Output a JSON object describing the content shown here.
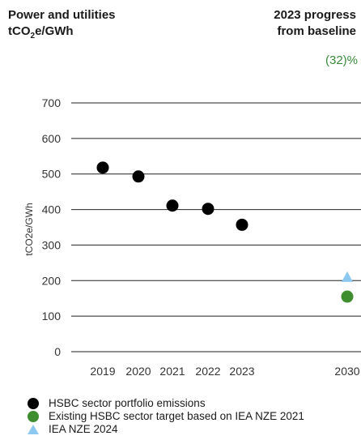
{
  "header": {
    "title_line1": "Power and utilities",
    "title_unit_main": "tCO",
    "title_unit_sub": "2",
    "title_unit_tail": "e/GWh",
    "progress_line1": "2023 progress",
    "progress_line2": "from baseline",
    "progress_value": "(32)%"
  },
  "chart_data": {
    "type": "scatter",
    "ylabel": "tCO2e/GWh",
    "ylim": [
      0,
      700
    ],
    "yticks": [
      0,
      100,
      200,
      300,
      400,
      500,
      600,
      700
    ],
    "x_categories": [
      "2019",
      "2020",
      "2021",
      "2022",
      "2023",
      "2030"
    ],
    "grid": true,
    "series": [
      {
        "name": "HSBC sector portfolio emissions",
        "marker": "circle",
        "color": "#000000",
        "points": [
          {
            "x": "2019",
            "y": 518
          },
          {
            "x": "2020",
            "y": 493
          },
          {
            "x": "2021",
            "y": 411
          },
          {
            "x": "2022",
            "y": 402
          },
          {
            "x": "2023",
            "y": 357
          }
        ]
      },
      {
        "name": "Existing HSBC sector target based on IEA NZE 2021",
        "marker": "circle",
        "color": "#3e8e2f",
        "points": [
          {
            "x": "2030",
            "y": 155
          }
        ]
      },
      {
        "name": "IEA NZE 2024",
        "marker": "triangle",
        "color": "#8cc8ef",
        "points": [
          {
            "x": "2030",
            "y": 210
          }
        ]
      }
    ]
  }
}
